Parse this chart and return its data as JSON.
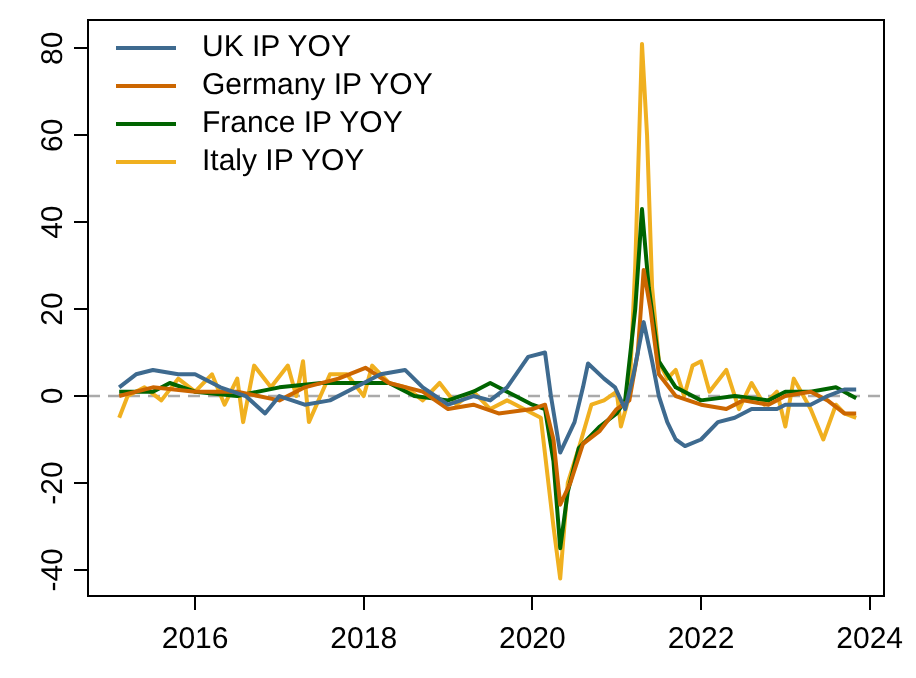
{
  "chart_data": {
    "type": "line",
    "xlim": [
      2014.73,
      2024.17
    ],
    "ylim": [
      -46,
      86.5
    ],
    "xticks": [
      2016,
      2018,
      2020,
      2022,
      2024
    ],
    "yticks": [
      -40,
      -20,
      0,
      20,
      40,
      60,
      80
    ],
    "grid": false,
    "legend": "top left",
    "marker": "none",
    "line_style": "solid",
    "ref_lines": [
      {
        "axis": "y",
        "value": 0,
        "color": "#aaaaaa",
        "line_style": "dashed"
      }
    ],
    "series": [
      {
        "name": "UK IP YOY",
        "color": "#3e6a8f",
        "x": [
          2015.1,
          2015.3,
          2015.5,
          2015.8,
          2016.0,
          2016.3,
          2016.6,
          2016.83,
          2017.0,
          2017.3,
          2017.6,
          2018.0,
          2018.2,
          2018.49,
          2018.7,
          2019.0,
          2019.3,
          2019.5,
          2019.7,
          2019.95,
          2020.15,
          2020.22,
          2020.33,
          2020.5,
          2020.6,
          2020.66,
          2020.85,
          2020.98,
          2021.1,
          2021.2,
          2021.32,
          2021.42,
          2021.5,
          2021.6,
          2021.7,
          2021.81,
          2022.0,
          2022.2,
          2022.4,
          2022.6,
          2022.9,
          2023.0,
          2023.3,
          2023.5,
          2023.7,
          2023.84
        ],
        "values": [
          2,
          5,
          6,
          5,
          5,
          2,
          0,
          -4,
          0,
          -2,
          -1,
          3,
          5,
          6,
          2,
          -2,
          0,
          -1,
          2,
          9,
          10,
          0,
          -13,
          -6,
          2,
          7.5,
          4,
          2,
          -3,
          5,
          17,
          8,
          0,
          -6,
          -10,
          -11.5,
          -10,
          -6,
          -5,
          -3,
          -3,
          -2,
          -2,
          0,
          1.5,
          1.5
        ]
      },
      {
        "name": "Germany IP YOY",
        "color": "#cc6600",
        "x": [
          2015.1,
          2015.5,
          2016.0,
          2016.5,
          2017.0,
          2017.3,
          2017.7,
          2018.02,
          2018.3,
          2018.7,
          2019.0,
          2019.3,
          2019.6,
          2020.0,
          2020.15,
          2020.25,
          2020.33,
          2020.45,
          2020.6,
          2020.8,
          2021.0,
          2021.15,
          2021.25,
          2021.32,
          2021.4,
          2021.5,
          2021.7,
          2022.0,
          2022.3,
          2022.5,
          2022.8,
          2023.0,
          2023.3,
          2023.5,
          2023.7,
          2023.84
        ],
        "values": [
          0,
          2,
          1,
          1,
          -1,
          2,
          4,
          6.5,
          3,
          1,
          -3,
          -2,
          -4,
          -3,
          -2,
          -10,
          -25,
          -20,
          -11,
          -8,
          -3,
          -1,
          10,
          29,
          20,
          5,
          0,
          -2,
          -3,
          -1,
          -2,
          0,
          1,
          -1,
          -4,
          -4
        ]
      },
      {
        "name": "France IP YOY",
        "color": "#006400",
        "x": [
          2015.1,
          2015.5,
          2015.7,
          2016.0,
          2016.5,
          2017.0,
          2017.5,
          2018.0,
          2018.3,
          2018.6,
          2019.0,
          2019.3,
          2019.5,
          2019.8,
          2020.0,
          2020.15,
          2020.25,
          2020.33,
          2020.42,
          2020.55,
          2020.8,
          2021.0,
          2021.1,
          2021.22,
          2021.3,
          2021.38,
          2021.5,
          2021.7,
          2022.0,
          2022.4,
          2022.8,
          2023.0,
          2023.3,
          2023.6,
          2023.84
        ],
        "values": [
          1,
          1,
          3,
          1,
          0,
          2,
          3,
          3,
          3,
          0,
          -1,
          1,
          3,
          0,
          -2,
          -3,
          -15,
          -35,
          -22,
          -12,
          -7,
          -4,
          -1,
          20,
          43,
          25,
          8,
          2,
          -1,
          0,
          -1,
          1,
          1,
          2,
          -0.5
        ]
      },
      {
        "name": "Italy IP YOY",
        "color": "#f0b020",
        "x": [
          2015.1,
          2015.2,
          2015.4,
          2015.6,
          2015.8,
          2016.0,
          2016.2,
          2016.35,
          2016.5,
          2016.57,
          2016.7,
          2016.9,
          2017.1,
          2017.2,
          2017.28,
          2017.35,
          2017.6,
          2017.8,
          2018.0,
          2018.1,
          2018.3,
          2018.5,
          2018.7,
          2018.9,
          2019.1,
          2019.3,
          2019.5,
          2019.7,
          2019.9,
          2020.1,
          2020.25,
          2020.33,
          2020.42,
          2020.55,
          2020.7,
          2020.85,
          2021.0,
          2021.05,
          2021.15,
          2021.22,
          2021.3,
          2021.36,
          2021.42,
          2021.5,
          2021.6,
          2021.7,
          2021.8,
          2021.9,
          2022.0,
          2022.1,
          2022.3,
          2022.45,
          2022.6,
          2022.75,
          2022.9,
          2023.0,
          2023.1,
          2023.3,
          2023.45,
          2023.6,
          2023.7,
          2023.84
        ],
        "values": [
          -5,
          0,
          2,
          -1,
          4,
          1,
          5,
          -2,
          4,
          -6,
          7,
          2,
          7,
          0,
          8,
          -6,
          5,
          5,
          0,
          7,
          3,
          2,
          -1,
          3,
          -2,
          1,
          -3,
          -1,
          -3,
          -5,
          -30,
          -42,
          -20,
          -12,
          -2,
          -1,
          1,
          -7,
          0,
          30,
          81,
          60,
          25,
          8,
          4,
          6,
          0,
          7,
          8,
          1,
          6,
          -3,
          3,
          -2,
          1,
          -7,
          4,
          -3,
          -10,
          -2,
          -4,
          -5
        ]
      }
    ]
  }
}
